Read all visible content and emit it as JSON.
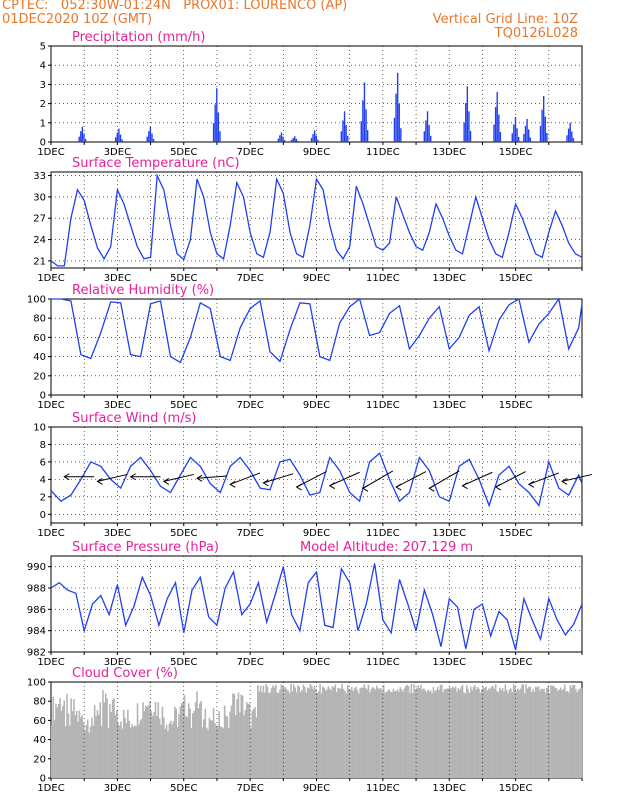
{
  "header": {
    "line1": "CPTEC:   052:30W-01:24N   PROX01: LOURENCO (AP)",
    "line2_left": "01DEC2020 10Z (GMT)",
    "line2_right": "Vertical Grid Line: 10Z",
    "line3_right": "TQ0126L028"
  },
  "colors": {
    "header": "#e8782c",
    "title": "#e6219a",
    "series": "#2040f0",
    "cloud": "#b4b4b4"
  },
  "x_ticks": [
    "1DEC",
    "3DEC",
    "5DEC",
    "7DEC",
    "9DEC",
    "11DEC",
    "13DEC",
    "15DEC"
  ],
  "chart_data": [
    {
      "type": "bar",
      "title": "Precipitation (mm/h)",
      "ylim": [
        0,
        5
      ],
      "yticks": [
        0,
        1,
        2,
        3,
        4,
        5
      ],
      "x_unit": "days since 01DEC 10Z",
      "bars": [
        [
          0.9,
          0.8
        ],
        [
          2.0,
          0.7
        ],
        [
          2.95,
          0.8
        ],
        [
          4.95,
          2.8
        ],
        [
          6.9,
          0.5
        ],
        [
          7.3,
          0.3
        ],
        [
          7.9,
          0.6
        ],
        [
          8.8,
          1.6
        ],
        [
          9.4,
          3.1
        ],
        [
          10.4,
          3.6
        ],
        [
          11.3,
          1.6
        ],
        [
          12.5,
          2.9
        ],
        [
          13.4,
          2.6
        ],
        [
          13.95,
          1.3
        ],
        [
          14.3,
          1.2
        ],
        [
          14.8,
          2.4
        ],
        [
          15.6,
          1.0
        ]
      ]
    },
    {
      "type": "line",
      "title": "Surface Temperature (nC)",
      "ylim": [
        20,
        33.5
      ],
      "yticks": [
        21,
        24,
        27,
        30,
        33
      ],
      "x": [
        0,
        0.2,
        0.4,
        0.6,
        0.8,
        1.0,
        1.2,
        1.4,
        1.6,
        1.8,
        2.0,
        2.2,
        2.4,
        2.6,
        2.8,
        3.0,
        3.2,
        3.4,
        3.6,
        3.8,
        4.0,
        4.2,
        4.4,
        4.6,
        4.8,
        5.0,
        5.2,
        5.4,
        5.6,
        5.8,
        6.0,
        6.2,
        6.4,
        6.6,
        6.8,
        7.0,
        7.2,
        7.4,
        7.6,
        7.8,
        8.0,
        8.2,
        8.4,
        8.6,
        8.8,
        9.0,
        9.2,
        9.4,
        9.6,
        9.8,
        10.0,
        10.2,
        10.4,
        10.6,
        10.8,
        11.0,
        11.2,
        11.4,
        11.6,
        11.8,
        12.0,
        12.2,
        12.4,
        12.6,
        12.8,
        13.0,
        13.2,
        13.4,
        13.6,
        13.8,
        14.0,
        14.2,
        14.4,
        14.6,
        14.8,
        15.0,
        15.2,
        15.4,
        15.6,
        15.8,
        16.0
      ],
      "y": [
        21,
        20.3,
        20.3,
        27,
        31,
        29.5,
        26,
        22.8,
        21.3,
        23,
        31,
        29,
        26,
        23,
        21.3,
        21.5,
        33,
        31,
        26,
        22,
        21.2,
        24,
        32.5,
        30,
        25,
        22,
        21.3,
        26,
        32,
        30,
        25,
        22,
        21.5,
        25,
        32.5,
        30.5,
        25,
        22,
        21.5,
        26,
        32.5,
        31,
        26,
        22.5,
        21.3,
        23,
        31.5,
        29,
        26,
        23,
        22.5,
        23.5,
        30,
        27.5,
        25,
        23,
        22.5,
        25,
        29,
        27,
        24.5,
        22.5,
        22,
        26,
        30,
        27,
        24,
        22,
        21.5,
        25,
        29,
        27,
        24.5,
        22,
        21.5,
        25,
        28,
        26,
        23.5,
        22,
        21.5
      ]
    },
    {
      "type": "line",
      "title": "Relative Humidity (%)",
      "ylim": [
        0,
        100
      ],
      "yticks": [
        0,
        20,
        40,
        60,
        80,
        100
      ],
      "x": [
        0,
        0.3,
        0.6,
        0.9,
        1.2,
        1.5,
        1.8,
        2.1,
        2.4,
        2.7,
        3.0,
        3.3,
        3.6,
        3.9,
        4.2,
        4.5,
        4.8,
        5.1,
        5.4,
        5.7,
        6.0,
        6.3,
        6.6,
        6.9,
        7.2,
        7.5,
        7.8,
        8.1,
        8.4,
        8.7,
        9.0,
        9.3,
        9.6,
        9.9,
        10.2,
        10.5,
        10.8,
        11.1,
        11.4,
        11.7,
        12.0,
        12.3,
        12.6,
        12.9,
        13.2,
        13.5,
        13.8,
        14.1,
        14.4,
        14.7,
        15.0,
        15.3,
        15.6,
        15.9,
        16.0
      ],
      "y": [
        100,
        100,
        98,
        42,
        38,
        65,
        97,
        96,
        42,
        40,
        95,
        98,
        40,
        34,
        60,
        96,
        90,
        40,
        36,
        70,
        90,
        98,
        45,
        35,
        68,
        96,
        95,
        40,
        36,
        75,
        92,
        100,
        62,
        65,
        85,
        93,
        48,
        62,
        80,
        92,
        48,
        60,
        83,
        92,
        46,
        78,
        94,
        100,
        55,
        74,
        85,
        100,
        48,
        70,
        95
      ]
    },
    {
      "type": "line",
      "title": "Surface Wind (m/s)",
      "ylim": [
        -1,
        10
      ],
      "yticks": [
        0,
        2,
        4,
        6,
        8,
        10
      ],
      "x": [
        0,
        0.3,
        0.6,
        0.9,
        1.2,
        1.5,
        1.8,
        2.1,
        2.4,
        2.7,
        3.0,
        3.3,
        3.6,
        3.9,
        4.2,
        4.5,
        4.8,
        5.1,
        5.4,
        5.7,
        6.0,
        6.3,
        6.6,
        6.9,
        7.2,
        7.5,
        7.8,
        8.1,
        8.4,
        8.7,
        9.0,
        9.3,
        9.6,
        9.9,
        10.2,
        10.5,
        10.8,
        11.1,
        11.4,
        11.7,
        12.0,
        12.3,
        12.6,
        12.9,
        13.2,
        13.5,
        13.8,
        14.1,
        14.4,
        14.7,
        15.0,
        15.3,
        15.6,
        15.9,
        16.0
      ],
      "y": [
        2.7,
        1.5,
        2.2,
        4.0,
        6.0,
        5.5,
        4.0,
        3.0,
        5.5,
        6.5,
        5.0,
        3.2,
        2.5,
        4.5,
        6.5,
        5.5,
        3.5,
        2.5,
        5.5,
        6.5,
        5.0,
        3.0,
        2.8,
        6.0,
        6.3,
        4.5,
        2.2,
        2.5,
        6.5,
        5.0,
        2.5,
        1.5,
        6.0,
        7.0,
        4.0,
        1.5,
        2.5,
        6.5,
        5.0,
        2.0,
        1.5,
        5.5,
        6.3,
        4.0,
        1.0,
        4.5,
        5.5,
        3.5,
        2.5,
        1.0,
        6.0,
        3.0,
        2.2,
        4.5,
        3.5
      ],
      "arrows_x": [
        0.4,
        1.4,
        2.4,
        3.4,
        4.4,
        5.4,
        6.4,
        7.4,
        8.4,
        9.4,
        10.4,
        11.4,
        12.4,
        13.4,
        14.4,
        15.4
      ],
      "arrows_angle": [
        0,
        15,
        0,
        15,
        5,
        25,
        20,
        35,
        30,
        40,
        35,
        40,
        30,
        35,
        25,
        15
      ],
      "arrows_len": 0.9
    },
    {
      "type": "line",
      "title": "Surface Pressure (hPa)",
      "annotation": "Model Altitude: 207.129 m",
      "ylim": [
        982,
        991
      ],
      "yticks": [
        982,
        984,
        986,
        988,
        990
      ],
      "x": [
        0,
        0.25,
        0.5,
        0.75,
        1.0,
        1.25,
        1.5,
        1.75,
        2.0,
        2.25,
        2.5,
        2.75,
        3.0,
        3.25,
        3.5,
        3.75,
        4.0,
        4.25,
        4.5,
        4.75,
        5.0,
        5.25,
        5.5,
        5.75,
        6.0,
        6.25,
        6.5,
        6.75,
        7.0,
        7.25,
        7.5,
        7.75,
        8.0,
        8.25,
        8.5,
        8.75,
        9.0,
        9.25,
        9.5,
        9.75,
        10.0,
        10.25,
        10.5,
        10.75,
        11.0,
        11.25,
        11.5,
        11.75,
        12.0,
        12.25,
        12.5,
        12.75,
        13.0,
        13.25,
        13.5,
        13.75,
        14.0,
        14.25,
        14.5,
        14.75,
        15.0,
        15.25,
        15.5,
        15.75,
        16.0
      ],
      "y": [
        988,
        988.5,
        987.8,
        987.5,
        984,
        986.5,
        987.3,
        985.5,
        988.3,
        984.5,
        986.3,
        989,
        987.3,
        984.5,
        987,
        988.5,
        983.8,
        987.8,
        989,
        985.3,
        984.5,
        988,
        989.5,
        985.5,
        986.5,
        988.5,
        984.8,
        987.3,
        990,
        985.5,
        984,
        988.5,
        989.5,
        984.5,
        984.3,
        989.8,
        988.5,
        984,
        986.5,
        990.3,
        985,
        983.8,
        988.8,
        986.5,
        984,
        987.8,
        985.5,
        982.5,
        987,
        986.2,
        982.3,
        986,
        986.5,
        983.5,
        985.8,
        985,
        982.2,
        987,
        985,
        983.2,
        987,
        985,
        983.6,
        984.6,
        986.5
      ]
    },
    {
      "type": "bar",
      "title": "Cloud Cover (%)",
      "ylim": [
        0,
        100
      ],
      "yticks": [
        0,
        20,
        40,
        60,
        80,
        100
      ]
    }
  ]
}
